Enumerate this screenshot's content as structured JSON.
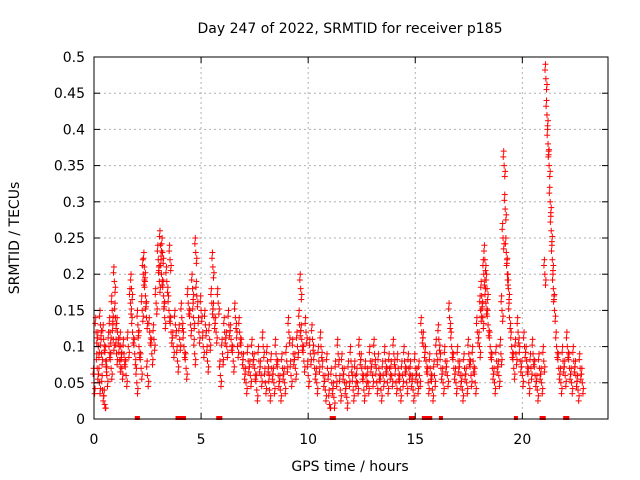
{
  "chart_data": {
    "type": "scatter",
    "title": "Day 247 of 2022, SRMTID for receiver p185",
    "xlabel": "GPS time / hours",
    "ylabel": "SRMTID / TECUs",
    "xlim": [
      0,
      24
    ],
    "ylim": [
      0,
      0.5
    ],
    "xticks": [
      0,
      5,
      10,
      15,
      20
    ],
    "yticks": [
      0,
      0.05,
      0.1,
      0.15,
      0.2,
      0.25,
      0.3,
      0.35,
      0.4,
      0.45,
      0.5
    ],
    "xtick_labels": [
      "0",
      "5",
      "10",
      "15",
      "20"
    ],
    "ytick_labels": [
      "0",
      "0.05",
      "0.1",
      "0.15",
      "0.2",
      "0.25",
      "0.3",
      "0.35",
      "0.4",
      "0.45",
      "0.5"
    ],
    "grid": true,
    "marker": "+",
    "color": "#ff0000",
    "series": [
      {
        "name": "SRMTID",
        "points": [
          [
            0.0,
            0.05
          ],
          [
            0.1,
            0.12
          ],
          [
            0.15,
            0.07
          ],
          [
            0.2,
            0.1
          ],
          [
            0.25,
            0.05
          ],
          [
            0.3,
            0.13
          ],
          [
            0.35,
            0.09
          ],
          [
            0.4,
            0.04
          ],
          [
            0.45,
            0.11
          ],
          [
            0.5,
            0.02
          ],
          [
            0.55,
            0.08
          ],
          [
            0.6,
            0.06
          ],
          [
            0.7,
            0.1
          ],
          [
            0.75,
            0.12
          ],
          [
            0.8,
            0.07
          ],
          [
            0.85,
            0.15
          ],
          [
            0.9,
            0.11
          ],
          [
            0.95,
            0.19
          ],
          [
            1.0,
            0.14
          ],
          [
            1.05,
            0.09
          ],
          [
            1.1,
            0.12
          ],
          [
            1.2,
            0.08
          ],
          [
            1.25,
            0.1
          ],
          [
            1.3,
            0.07
          ],
          [
            1.4,
            0.09
          ],
          [
            1.5,
            0.06
          ],
          [
            1.6,
            0.1
          ],
          [
            1.7,
            0.16
          ],
          [
            1.75,
            0.18
          ],
          [
            1.8,
            0.12
          ],
          [
            1.9,
            0.09
          ],
          [
            2.0,
            0.05
          ],
          [
            2.05,
            0.13
          ],
          [
            2.1,
            0.1
          ],
          [
            2.2,
            0.07
          ],
          [
            2.25,
            0.15
          ],
          [
            2.3,
            0.2
          ],
          [
            2.35,
            0.21
          ],
          [
            2.4,
            0.17
          ],
          [
            2.45,
            0.14
          ],
          [
            2.5,
            0.06
          ],
          [
            2.6,
            0.12
          ],
          [
            2.7,
            0.09
          ],
          [
            2.8,
            0.11
          ],
          [
            2.9,
            0.16
          ],
          [
            3.0,
            0.22
          ],
          [
            3.05,
            0.19
          ],
          [
            3.1,
            0.24
          ],
          [
            3.15,
            0.2
          ],
          [
            3.2,
            0.23
          ],
          [
            3.25,
            0.17
          ],
          [
            3.3,
            0.14
          ],
          [
            3.4,
            0.19
          ],
          [
            3.5,
            0.15
          ],
          [
            3.55,
            0.22
          ],
          [
            3.6,
            0.12
          ],
          [
            3.7,
            0.1
          ],
          [
            3.8,
            0.13
          ],
          [
            3.9,
            0.08
          ],
          [
            4.0,
            0.11
          ],
          [
            4.1,
            0.14
          ],
          [
            4.2,
            0.1
          ],
          [
            4.3,
            0.07
          ],
          [
            4.4,
            0.16
          ],
          [
            4.5,
            0.13
          ],
          [
            4.6,
            0.18
          ],
          [
            4.65,
            0.14
          ],
          [
            4.7,
            0.09
          ],
          [
            4.75,
            0.23
          ],
          [
            4.8,
            0.17
          ],
          [
            4.9,
            0.12
          ],
          [
            5.0,
            0.15
          ],
          [
            5.1,
            0.1
          ],
          [
            5.2,
            0.13
          ],
          [
            5.3,
            0.08
          ],
          [
            5.4,
            0.11
          ],
          [
            5.5,
            0.16
          ],
          [
            5.55,
            0.21
          ],
          [
            5.6,
            0.14
          ],
          [
            5.7,
            0.12
          ],
          [
            5.8,
            0.16
          ],
          [
            5.9,
            0.06
          ],
          [
            6.0,
            0.09
          ],
          [
            6.1,
            0.12
          ],
          [
            6.2,
            0.1
          ],
          [
            6.3,
            0.13
          ],
          [
            6.4,
            0.11
          ],
          [
            6.5,
            0.08
          ],
          [
            6.6,
            0.14
          ],
          [
            6.7,
            0.1
          ],
          [
            6.8,
            0.12
          ],
          [
            6.9,
            0.09
          ],
          [
            7.0,
            0.07
          ],
          [
            7.1,
            0.05
          ],
          [
            7.2,
            0.08
          ],
          [
            7.3,
            0.06
          ],
          [
            7.4,
            0.09
          ],
          [
            7.5,
            0.07
          ],
          [
            7.6,
            0.04
          ],
          [
            7.7,
            0.08
          ],
          [
            7.8,
            0.06
          ],
          [
            7.9,
            0.1
          ],
          [
            8.0,
            0.05
          ],
          [
            8.1,
            0.08
          ],
          [
            8.2,
            0.04
          ],
          [
            8.3,
            0.07
          ],
          [
            8.4,
            0.05
          ],
          [
            8.5,
            0.09
          ],
          [
            8.6,
            0.06
          ],
          [
            8.7,
            0.04
          ],
          [
            8.8,
            0.07
          ],
          [
            8.9,
            0.05
          ],
          [
            9.0,
            0.08
          ],
          [
            9.1,
            0.12
          ],
          [
            9.2,
            0.06
          ],
          [
            9.3,
            0.09
          ],
          [
            9.4,
            0.07
          ],
          [
            9.5,
            0.1
          ],
          [
            9.6,
            0.13
          ],
          [
            9.65,
            0.18
          ],
          [
            9.7,
            0.11
          ],
          [
            9.8,
            0.08
          ],
          [
            9.9,
            0.12
          ],
          [
            10.0,
            0.06
          ],
          [
            10.1,
            0.09
          ],
          [
            10.2,
            0.11
          ],
          [
            10.3,
            0.07
          ],
          [
            10.4,
            0.05
          ],
          [
            10.5,
            0.08
          ],
          [
            10.6,
            0.1
          ],
          [
            10.7,
            0.06
          ],
          [
            10.8,
            0.04
          ],
          [
            10.9,
            0.07
          ],
          [
            11.0,
            0.02
          ],
          [
            11.1,
            0.05
          ],
          [
            11.2,
            0.03
          ],
          [
            11.3,
            0.06
          ],
          [
            11.4,
            0.09
          ],
          [
            11.5,
            0.04
          ],
          [
            11.6,
            0.07
          ],
          [
            11.7,
            0.05
          ],
          [
            11.8,
            0.03
          ],
          [
            11.9,
            0.06
          ],
          [
            12.0,
            0.08
          ],
          [
            12.1,
            0.04
          ],
          [
            12.2,
            0.06
          ],
          [
            12.3,
            0.05
          ],
          [
            12.4,
            0.09
          ],
          [
            12.5,
            0.07
          ],
          [
            12.6,
            0.04
          ],
          [
            12.7,
            0.06
          ],
          [
            12.8,
            0.05
          ],
          [
            12.9,
            0.08
          ],
          [
            13.0,
            0.06
          ],
          [
            13.1,
            0.09
          ],
          [
            13.2,
            0.05
          ],
          [
            13.3,
            0.07
          ],
          [
            13.4,
            0.04
          ],
          [
            13.5,
            0.06
          ],
          [
            13.6,
            0.08
          ],
          [
            13.7,
            0.05
          ],
          [
            13.8,
            0.07
          ],
          [
            13.9,
            0.06
          ],
          [
            14.0,
            0.09
          ],
          [
            14.1,
            0.05
          ],
          [
            14.2,
            0.07
          ],
          [
            14.3,
            0.04
          ],
          [
            14.4,
            0.06
          ],
          [
            14.5,
            0.08
          ],
          [
            14.6,
            0.05
          ],
          [
            14.7,
            0.07
          ],
          [
            14.8,
            0.06
          ],
          [
            14.9,
            0.04
          ],
          [
            15.0,
            0.07
          ],
          [
            15.1,
            0.05
          ],
          [
            15.2,
            0.06
          ],
          [
            15.3,
            0.12
          ],
          [
            15.4,
            0.1
          ],
          [
            15.5,
            0.08
          ],
          [
            15.6,
            0.05
          ],
          [
            15.7,
            0.07
          ],
          [
            15.8,
            0.04
          ],
          [
            15.9,
            0.06
          ],
          [
            16.0,
            0.09
          ],
          [
            16.1,
            0.11
          ],
          [
            16.2,
            0.07
          ],
          [
            16.3,
            0.05
          ],
          [
            16.4,
            0.08
          ],
          [
            16.5,
            0.06
          ],
          [
            16.6,
            0.14
          ],
          [
            16.7,
            0.1
          ],
          [
            16.8,
            0.07
          ],
          [
            16.9,
            0.05
          ],
          [
            17.0,
            0.08
          ],
          [
            17.1,
            0.06
          ],
          [
            17.2,
            0.04
          ],
          [
            17.3,
            0.07
          ],
          [
            17.4,
            0.05
          ],
          [
            17.5,
            0.09
          ],
          [
            17.6,
            0.06
          ],
          [
            17.7,
            0.08
          ],
          [
            17.8,
            0.05
          ],
          [
            17.9,
            0.12
          ],
          [
            18.0,
            0.1
          ],
          [
            18.05,
            0.15
          ],
          [
            18.1,
            0.17
          ],
          [
            18.15,
            0.14
          ],
          [
            18.2,
            0.2
          ],
          [
            18.25,
            0.22
          ],
          [
            18.3,
            0.16
          ],
          [
            18.35,
            0.18
          ],
          [
            18.4,
            0.13
          ],
          [
            18.5,
            0.1
          ],
          [
            18.6,
            0.07
          ],
          [
            18.7,
            0.05
          ],
          [
            18.8,
            0.08
          ],
          [
            18.9,
            0.06
          ],
          [
            19.0,
            0.09
          ],
          [
            19.05,
            0.15
          ],
          [
            19.1,
            0.25
          ],
          [
            19.15,
            0.35
          ],
          [
            19.2,
            0.29
          ],
          [
            19.25,
            0.23
          ],
          [
            19.3,
            0.2
          ],
          [
            19.35,
            0.18
          ],
          [
            19.4,
            0.14
          ],
          [
            19.5,
            0.1
          ],
          [
            19.6,
            0.07
          ],
          [
            19.7,
            0.09
          ],
          [
            19.8,
            0.12
          ],
          [
            19.9,
            0.08
          ],
          [
            20.0,
            0.06
          ],
          [
            20.1,
            0.1
          ],
          [
            20.2,
            0.08
          ],
          [
            20.3,
            0.05
          ],
          [
            20.4,
            0.07
          ],
          [
            20.5,
            0.09
          ],
          [
            20.6,
            0.06
          ],
          [
            20.7,
            0.04
          ],
          [
            20.8,
            0.07
          ],
          [
            20.9,
            0.05
          ],
          [
            21.0,
            0.08
          ],
          [
            21.05,
            0.2
          ],
          [
            21.1,
            0.47
          ],
          [
            21.15,
            0.42
          ],
          [
            21.2,
            0.38
          ],
          [
            21.25,
            0.35
          ],
          [
            21.3,
            0.3
          ],
          [
            21.35,
            0.26
          ],
          [
            21.4,
            0.22
          ],
          [
            21.45,
            0.18
          ],
          [
            21.5,
            0.15
          ],
          [
            21.6,
            0.1
          ],
          [
            21.7,
            0.07
          ],
          [
            21.8,
            0.05
          ],
          [
            21.9,
            0.08
          ],
          [
            22.0,
            0.06
          ],
          [
            22.1,
            0.1
          ],
          [
            22.2,
            0.07
          ],
          [
            22.3,
            0.05
          ],
          [
            22.4,
            0.08
          ],
          [
            22.5,
            0.06
          ],
          [
            22.6,
            0.04
          ],
          [
            22.7,
            0.07
          ],
          [
            22.8,
            0.05
          ]
        ]
      }
    ],
    "zero_points_x": [
      2.0,
      2.05,
      3.9,
      4.05,
      4.2,
      5.8,
      5.9,
      11.1,
      11.15,
      11.2,
      14.8,
      14.9,
      15.4,
      15.5,
      15.55,
      15.7,
      16.2,
      19.7,
      20.9,
      21.0,
      22.0,
      22.05,
      22.1
    ]
  }
}
